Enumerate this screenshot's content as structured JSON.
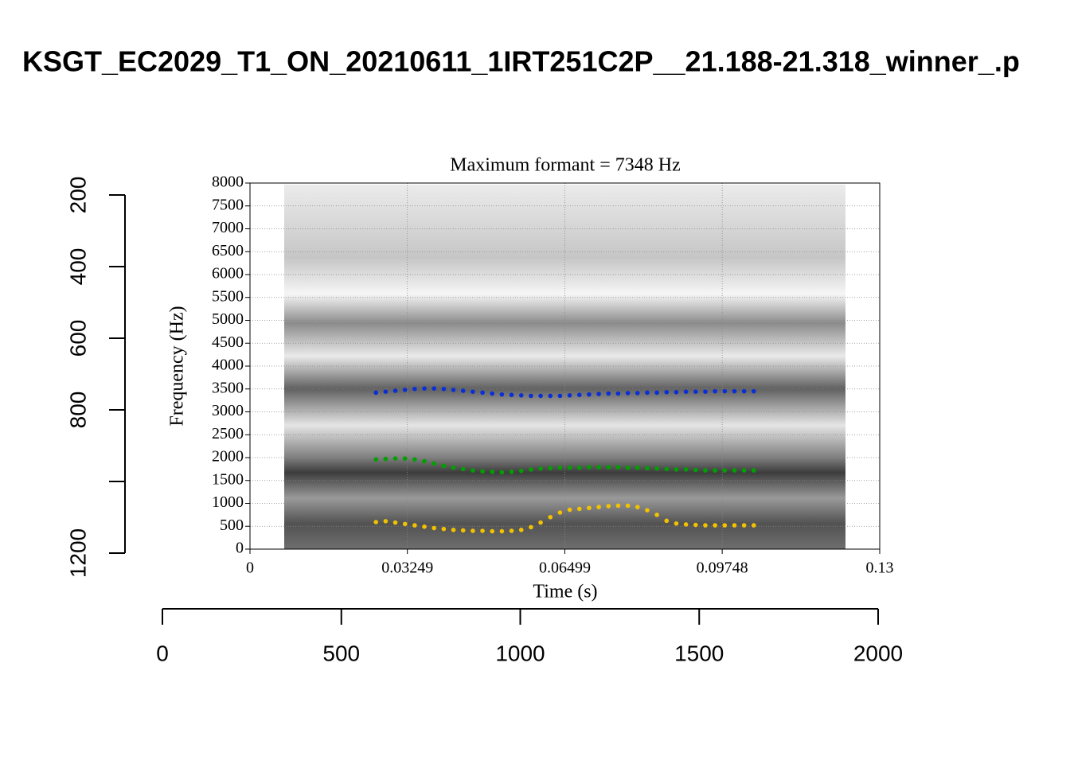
{
  "chart_data": [
    {
      "type": "image",
      "title": "KSGT_EC2029_T1_ON_20210611_1IRT251C2P__21.188-21.318_winner_.p",
      "xlim": [
        0,
        2000
      ],
      "xticks": [
        0,
        500,
        1000,
        1500,
        2000
      ],
      "ylim": [
        200,
        1200
      ],
      "yticks": [
        200,
        400,
        600,
        800,
        {
          "value": 1000,
          "label": null
        },
        1200
      ]
    },
    {
      "type": "scatter",
      "title": "Maximum formant = 7348 Hz",
      "xlabel": "Time (s)",
      "ylabel": "Frequency (Hz)",
      "xlim": [
        0,
        0.13
      ],
      "xticks": [
        0,
        0.03249,
        0.06499,
        0.09748,
        0.13
      ],
      "ylim": [
        0,
        8000
      ],
      "yticks": [
        0,
        500,
        1000,
        1500,
        2000,
        2500,
        3000,
        3500,
        4000,
        4500,
        5000,
        5500,
        6000,
        6500,
        7000,
        7500,
        8000
      ],
      "grid": true,
      "x": [
        0.026,
        0.028,
        0.03,
        0.032,
        0.034,
        0.036,
        0.038,
        0.04,
        0.042,
        0.044,
        0.046,
        0.048,
        0.05,
        0.052,
        0.054,
        0.056,
        0.058,
        0.06,
        0.062,
        0.064,
        0.066,
        0.068,
        0.07,
        0.072,
        0.074,
        0.076,
        0.078,
        0.08,
        0.082,
        0.084,
        0.086,
        0.088,
        0.09,
        0.092,
        0.094,
        0.096,
        0.098,
        0.1,
        0.102,
        0.104
      ],
      "series": [
        {
          "color": "#0a2fd6",
          "values": [
            3420,
            3440,
            3460,
            3480,
            3500,
            3510,
            3510,
            3500,
            3480,
            3460,
            3440,
            3420,
            3400,
            3380,
            3370,
            3360,
            3350,
            3350,
            3350,
            3350,
            3360,
            3370,
            3380,
            3390,
            3400,
            3400,
            3410,
            3410,
            3420,
            3420,
            3430,
            3430,
            3440,
            3440,
            3440,
            3450,
            3450,
            3450,
            3450,
            3450
          ]
        },
        {
          "color": "#00a000",
          "values": [
            1960,
            1970,
            1980,
            1980,
            1960,
            1920,
            1870,
            1820,
            1780,
            1750,
            1720,
            1700,
            1690,
            1680,
            1690,
            1710,
            1740,
            1760,
            1770,
            1780,
            1780,
            1780,
            1790,
            1790,
            1790,
            1790,
            1780,
            1780,
            1770,
            1760,
            1750,
            1740,
            1740,
            1730,
            1720,
            1720,
            1720,
            1720,
            1720,
            1720
          ]
        },
        {
          "color": "#f2c200",
          "values": [
            590,
            610,
            580,
            550,
            520,
            490,
            460,
            440,
            420,
            410,
            400,
            400,
            390,
            390,
            400,
            420,
            480,
            580,
            700,
            800,
            860,
            880,
            900,
            920,
            940,
            950,
            950,
            920,
            850,
            750,
            620,
            560,
            540,
            530,
            520,
            520,
            520,
            520,
            520,
            520
          ]
        }
      ]
    }
  ]
}
